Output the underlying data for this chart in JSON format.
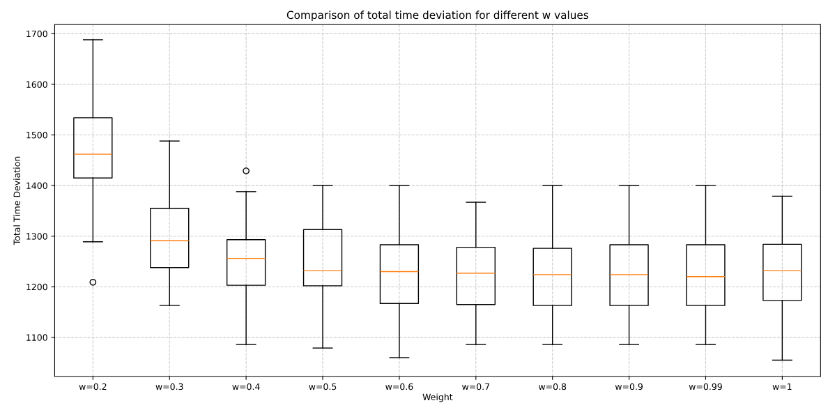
{
  "chart_data": {
    "type": "box",
    "title": "Comparison of total time deviation for different w values",
    "xlabel": "Weight",
    "ylabel": "Total Time Deviation",
    "categories": [
      "w=0.2",
      "w=0.3",
      "w=0.4",
      "w=0.5",
      "w=0.6",
      "w=0.7",
      "w=0.8",
      "w=0.9",
      "w=0.99",
      "w=1"
    ],
    "boxes": [
      {
        "low": 1289,
        "q1": 1415,
        "median": 1462,
        "q3": 1534,
        "high": 1688,
        "outliers": [
          1209
        ]
      },
      {
        "low": 1163,
        "q1": 1238,
        "median": 1291,
        "q3": 1355,
        "high": 1488
      },
      {
        "low": 1086,
        "q1": 1203,
        "median": 1256,
        "q3": 1293,
        "high": 1388,
        "outliers": [
          1429
        ]
      },
      {
        "low": 1079,
        "q1": 1202,
        "median": 1232,
        "q3": 1313,
        "high": 1400
      },
      {
        "low": 1060,
        "q1": 1167,
        "median": 1230,
        "q3": 1283,
        "high": 1400
      },
      {
        "low": 1086,
        "q1": 1165,
        "median": 1227,
        "q3": 1278,
        "high": 1367
      },
      {
        "low": 1086,
        "q1": 1163,
        "median": 1224,
        "q3": 1276,
        "high": 1400
      },
      {
        "low": 1086,
        "q1": 1163,
        "median": 1224,
        "q3": 1283,
        "high": 1400
      },
      {
        "low": 1086,
        "q1": 1163,
        "median": 1220,
        "q3": 1283,
        "high": 1400
      },
      {
        "low": 1055,
        "q1": 1173,
        "median": 1232,
        "q3": 1284,
        "high": 1379
      }
    ],
    "ylim": [
      1023,
      1718
    ],
    "yticks": [
      1100,
      1200,
      1300,
      1400,
      1500,
      1600,
      1700
    ],
    "grid": true
  }
}
